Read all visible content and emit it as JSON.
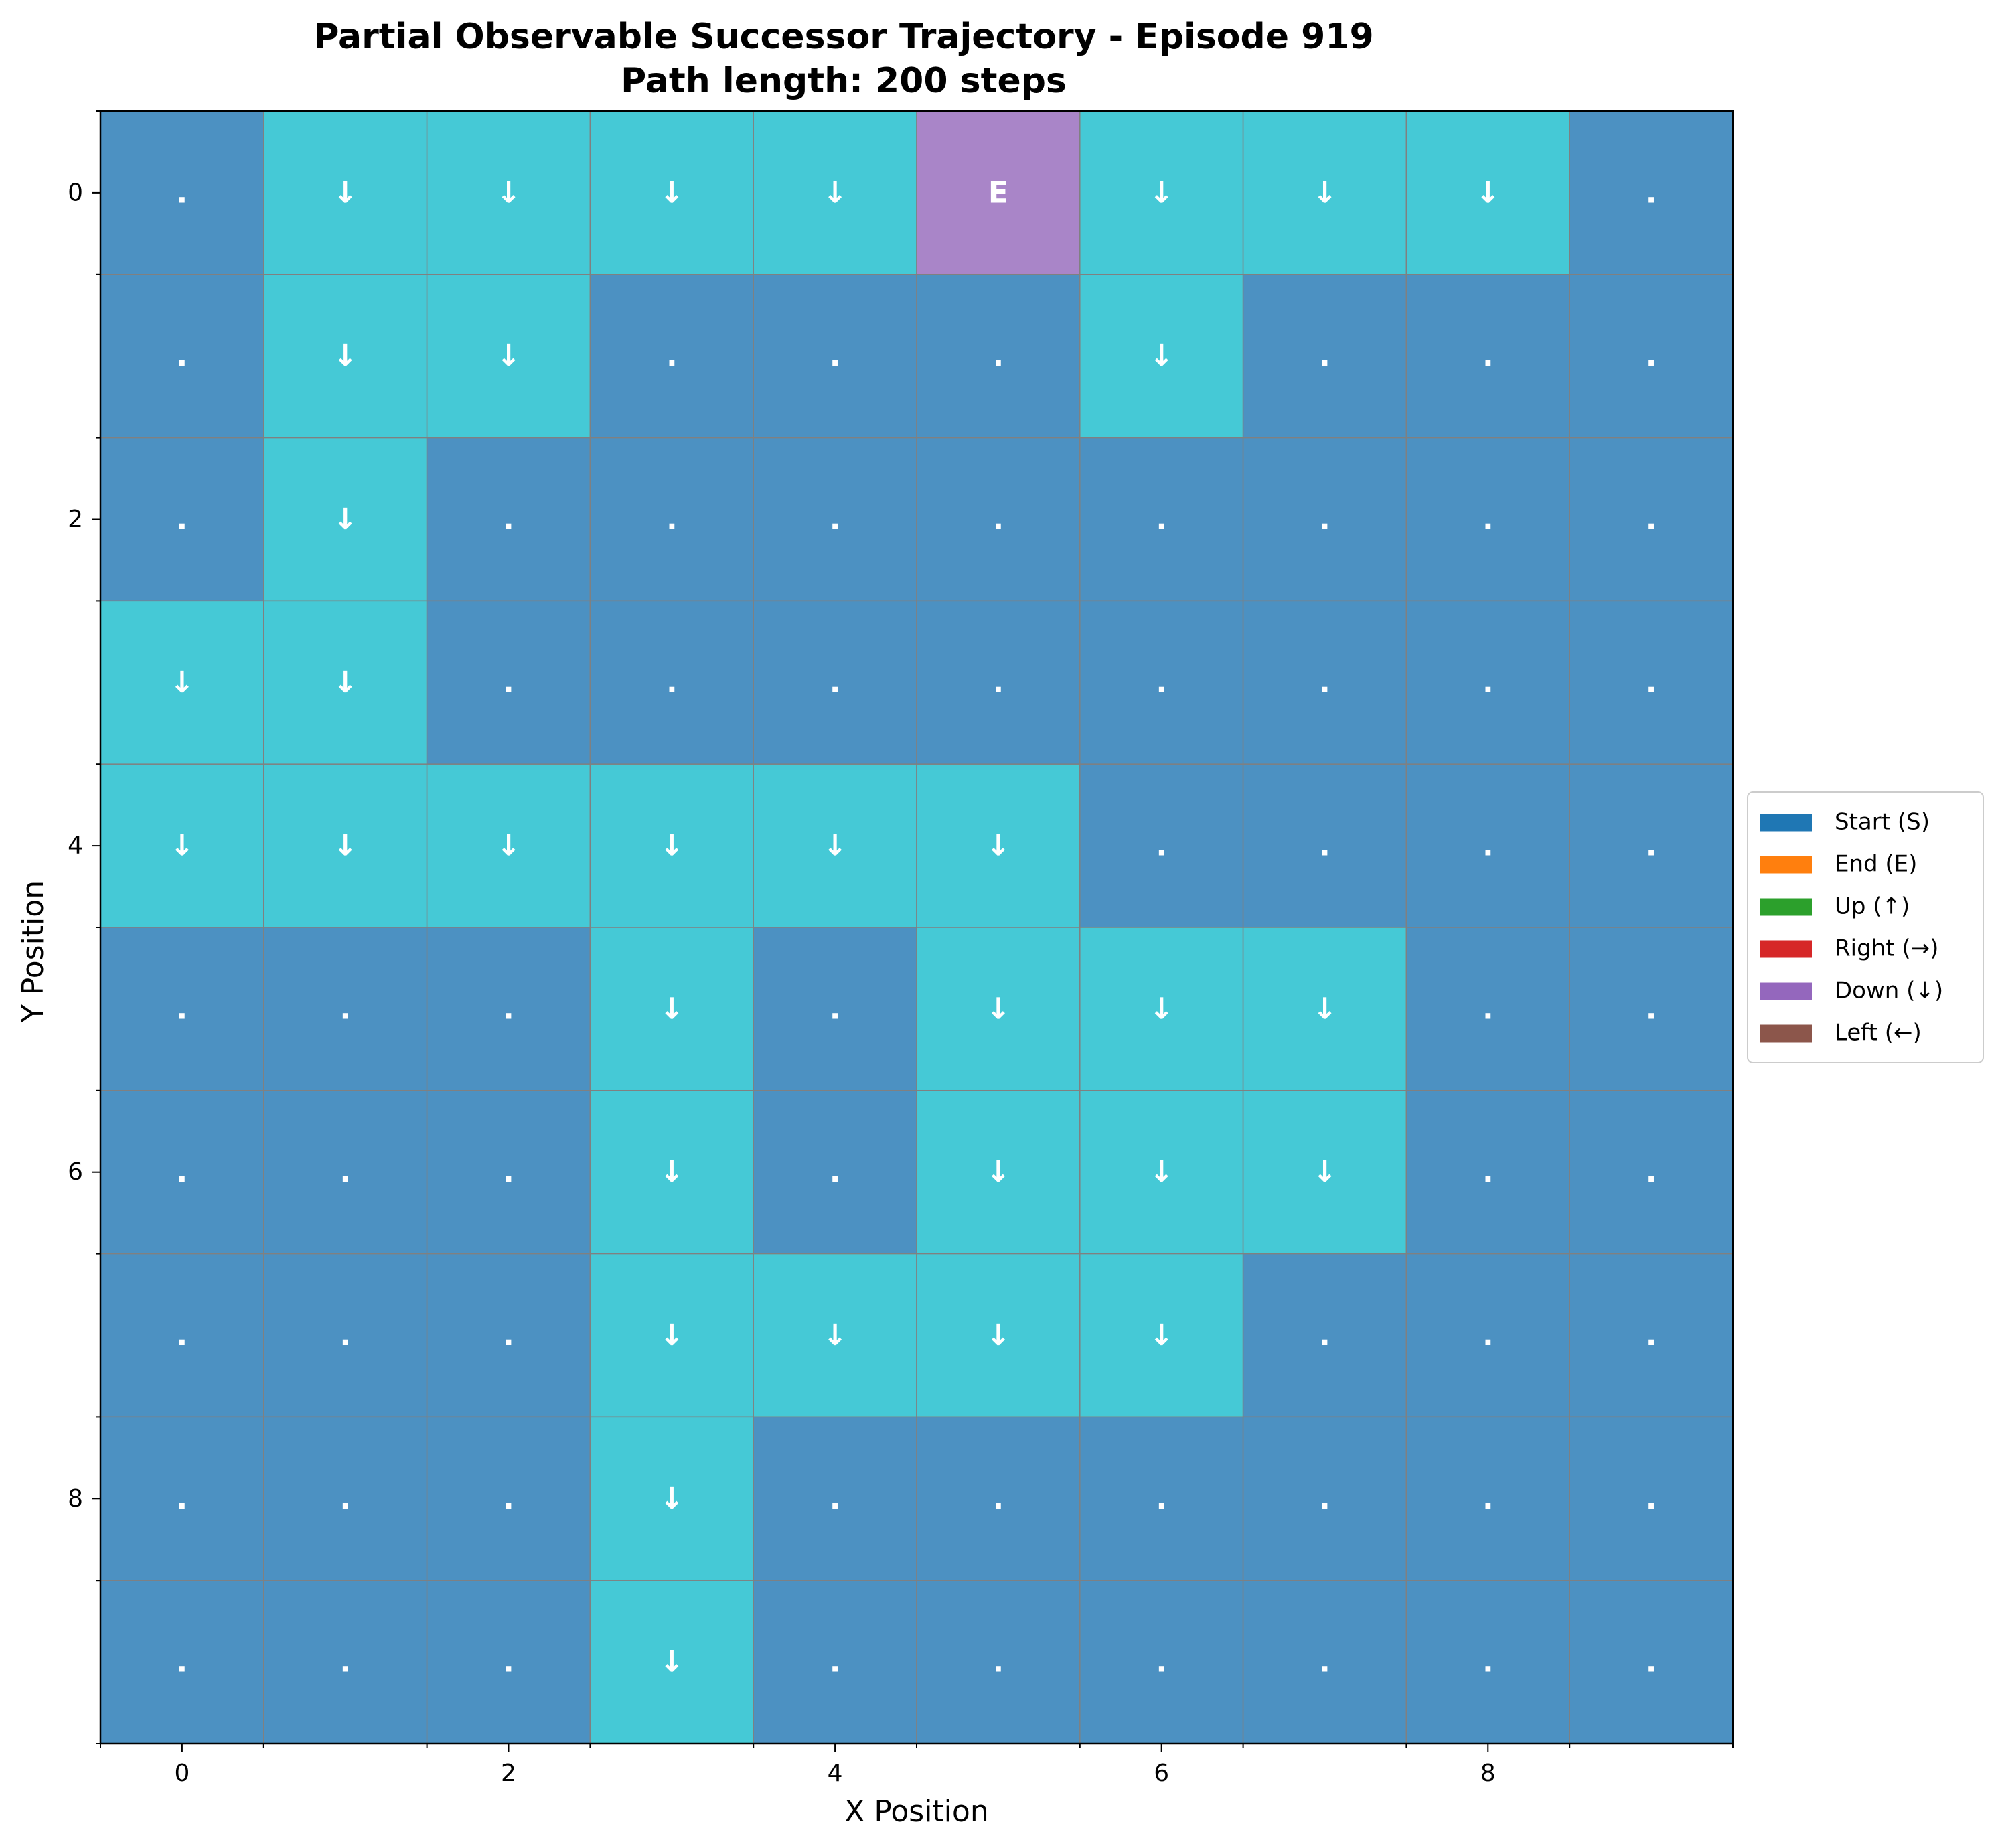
{
  "chart_data": {
    "type": "heatmap",
    "title": "Partial Observable Successor Trajectory - Episode 919",
    "subtitle": "Path length: 200 steps",
    "xlabel": "X Position",
    "ylabel": "Y Position",
    "xlim": [
      -0.5,
      9.5
    ],
    "ylim": [
      9.5,
      -0.5
    ],
    "x_ticks": [
      0,
      2,
      4,
      6,
      8
    ],
    "y_ticks": [
      0,
      2,
      4,
      6,
      8
    ],
    "grid": true,
    "legend_position": "right",
    "legend": [
      {
        "label": "Start (S)",
        "color": "#1f77b4"
      },
      {
        "label": "End (E)",
        "color": "#ff7f0e"
      },
      {
        "label": "Up (↑)",
        "color": "#2ca02c"
      },
      {
        "label": "Right (→)",
        "color": "#d62728"
      },
      {
        "label": "Down (↓)",
        "color": "#9467bd"
      },
      {
        "label": "Left (←)",
        "color": "#8c564b"
      }
    ],
    "colors": {
      "unvisited": "#4c91c2",
      "visited": "#45c9d6",
      "end": "#a985c8",
      "grid_line": "#808080"
    },
    "grid_symbols": [
      [
        ".",
        "↓",
        "↓",
        "↓",
        "↓",
        "E",
        "↓",
        "↓",
        "↓",
        "."
      ],
      [
        ".",
        "↓",
        "↓",
        ".",
        ".",
        ".",
        "↓",
        ".",
        ".",
        "."
      ],
      [
        ".",
        "↓",
        ".",
        ".",
        ".",
        ".",
        ".",
        ".",
        ".",
        "."
      ],
      [
        "↓",
        "↓",
        ".",
        ".",
        ".",
        ".",
        ".",
        ".",
        ".",
        "."
      ],
      [
        "↓",
        "↓",
        "↓",
        "↓",
        "↓",
        "↓",
        ".",
        ".",
        ".",
        "."
      ],
      [
        ".",
        ".",
        ".",
        "↓",
        ".",
        "↓",
        "↓",
        "↓",
        ".",
        "."
      ],
      [
        ".",
        ".",
        ".",
        "↓",
        ".",
        "↓",
        "↓",
        "↓",
        ".",
        "."
      ],
      [
        ".",
        ".",
        ".",
        "↓",
        "↓",
        "↓",
        "↓",
        ".",
        ".",
        "."
      ],
      [
        ".",
        ".",
        ".",
        "↓",
        ".",
        ".",
        ".",
        ".",
        ".",
        "."
      ],
      [
        ".",
        ".",
        ".",
        "↓",
        ".",
        ".",
        ".",
        ".",
        ".",
        "."
      ]
    ]
  }
}
